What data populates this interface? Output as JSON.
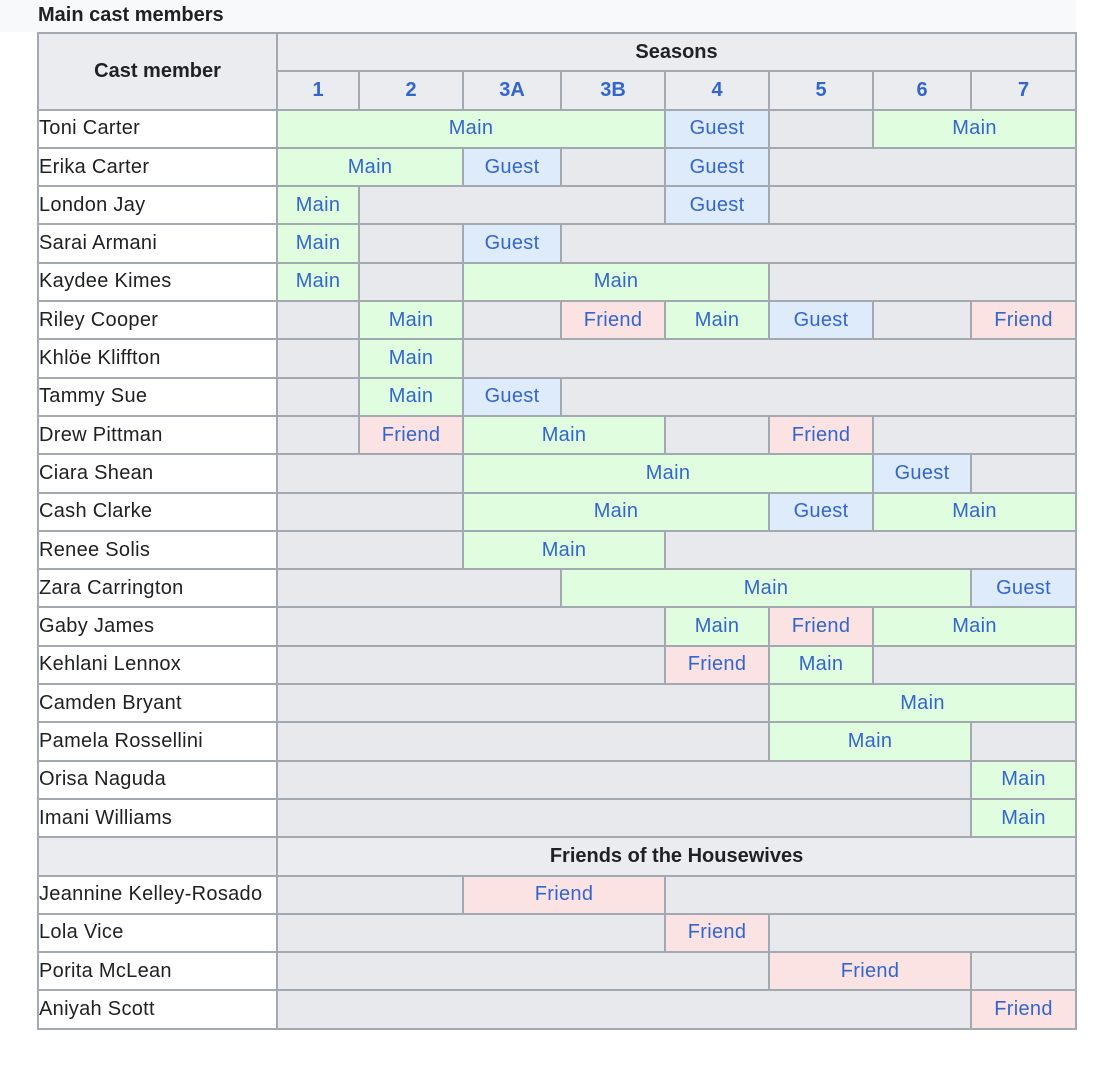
{
  "caption": "Main cast members",
  "header": {
    "cast_member": "Cast member",
    "seasons": "Seasons",
    "season_labels": [
      "1",
      "2",
      "3A",
      "3B",
      "4",
      "5",
      "6",
      "7"
    ]
  },
  "status_colors": {
    "Main": "#e0fde0",
    "Guest": "#deebfa",
    "Friend": "#fbe3e4",
    "none": "#e8e9ec"
  },
  "rows": [
    {
      "name": "Toni Carter",
      "cells": [
        {
          "span": 4,
          "status": "Main"
        },
        {
          "span": 1,
          "status": "Guest"
        },
        {
          "span": 1,
          "status": ""
        },
        {
          "span": 2,
          "status": "Main"
        }
      ]
    },
    {
      "name": "Erika Carter",
      "cells": [
        {
          "span": 2,
          "status": "Main"
        },
        {
          "span": 1,
          "status": "Guest"
        },
        {
          "span": 1,
          "status": ""
        },
        {
          "span": 1,
          "status": "Guest"
        },
        {
          "span": 3,
          "status": ""
        }
      ]
    },
    {
      "name": "London Jay",
      "cells": [
        {
          "span": 1,
          "status": "Main"
        },
        {
          "span": 3,
          "status": ""
        },
        {
          "span": 1,
          "status": "Guest"
        },
        {
          "span": 3,
          "status": ""
        }
      ]
    },
    {
      "name": "Sarai Armani",
      "cells": [
        {
          "span": 1,
          "status": "Main"
        },
        {
          "span": 1,
          "status": ""
        },
        {
          "span": 1,
          "status": "Guest"
        },
        {
          "span": 5,
          "status": ""
        }
      ]
    },
    {
      "name": "Kaydee Kimes",
      "cells": [
        {
          "span": 1,
          "status": "Main"
        },
        {
          "span": 1,
          "status": ""
        },
        {
          "span": 3,
          "status": "Main"
        },
        {
          "span": 3,
          "status": ""
        }
      ]
    },
    {
      "name": "Riley Cooper",
      "cells": [
        {
          "span": 1,
          "status": ""
        },
        {
          "span": 1,
          "status": "Main"
        },
        {
          "span": 1,
          "status": ""
        },
        {
          "span": 1,
          "status": "Friend"
        },
        {
          "span": 1,
          "status": "Main"
        },
        {
          "span": 1,
          "status": "Guest"
        },
        {
          "span": 1,
          "status": ""
        },
        {
          "span": 1,
          "status": "Friend"
        }
      ]
    },
    {
      "name": "Khlöe Kliffton",
      "cells": [
        {
          "span": 1,
          "status": ""
        },
        {
          "span": 1,
          "status": "Main"
        },
        {
          "span": 6,
          "status": ""
        }
      ]
    },
    {
      "name": "Tammy Sue",
      "cells": [
        {
          "span": 1,
          "status": ""
        },
        {
          "span": 1,
          "status": "Main"
        },
        {
          "span": 1,
          "status": "Guest"
        },
        {
          "span": 5,
          "status": ""
        }
      ]
    },
    {
      "name": "Drew Pittman",
      "cells": [
        {
          "span": 1,
          "status": ""
        },
        {
          "span": 1,
          "status": "Friend"
        },
        {
          "span": 2,
          "status": "Main"
        },
        {
          "span": 1,
          "status": ""
        },
        {
          "span": 1,
          "status": "Friend"
        },
        {
          "span": 2,
          "status": ""
        }
      ]
    },
    {
      "name": "Ciara Shean",
      "cells": [
        {
          "span": 2,
          "status": ""
        },
        {
          "span": 4,
          "status": "Main"
        },
        {
          "span": 1,
          "status": "Guest"
        },
        {
          "span": 1,
          "status": ""
        }
      ]
    },
    {
      "name": "Cash Clarke",
      "cells": [
        {
          "span": 2,
          "status": ""
        },
        {
          "span": 3,
          "status": "Main"
        },
        {
          "span": 1,
          "status": "Guest"
        },
        {
          "span": 2,
          "status": "Main"
        }
      ]
    },
    {
      "name": "Renee Solis",
      "cells": [
        {
          "span": 2,
          "status": ""
        },
        {
          "span": 2,
          "status": "Main"
        },
        {
          "span": 4,
          "status": ""
        }
      ]
    },
    {
      "name": "Zara Carrington",
      "cells": [
        {
          "span": 3,
          "status": ""
        },
        {
          "span": 4,
          "status": "Main"
        },
        {
          "span": 1,
          "status": "Guest"
        }
      ]
    },
    {
      "name": "Gaby James",
      "cells": [
        {
          "span": 4,
          "status": ""
        },
        {
          "span": 1,
          "status": "Main"
        },
        {
          "span": 1,
          "status": "Friend"
        },
        {
          "span": 2,
          "status": "Main"
        }
      ]
    },
    {
      "name": "Kehlani Lennox",
      "cells": [
        {
          "span": 4,
          "status": ""
        },
        {
          "span": 1,
          "status": "Friend"
        },
        {
          "span": 1,
          "status": "Main"
        },
        {
          "span": 2,
          "status": ""
        }
      ]
    },
    {
      "name": "Camden Bryant",
      "cells": [
        {
          "span": 5,
          "status": ""
        },
        {
          "span": 3,
          "status": "Main"
        }
      ]
    },
    {
      "name": "Pamela Rossellini",
      "cells": [
        {
          "span": 5,
          "status": ""
        },
        {
          "span": 2,
          "status": "Main"
        },
        {
          "span": 1,
          "status": ""
        }
      ]
    },
    {
      "name": "Orisa Naguda",
      "cells": [
        {
          "span": 7,
          "status": ""
        },
        {
          "span": 1,
          "status": "Main"
        }
      ]
    },
    {
      "name": "Imani Williams",
      "cells": [
        {
          "span": 7,
          "status": ""
        },
        {
          "span": 1,
          "status": "Main"
        }
      ]
    }
  ],
  "friends_header": "Friends of the Housewives",
  "friends": [
    {
      "name": "Jeannine Kelley-Rosado",
      "cells": [
        {
          "span": 2,
          "status": ""
        },
        {
          "span": 2,
          "status": "Friend"
        },
        {
          "span": 4,
          "status": ""
        }
      ]
    },
    {
      "name": "Lola Vice",
      "cells": [
        {
          "span": 4,
          "status": ""
        },
        {
          "span": 1,
          "status": "Friend"
        },
        {
          "span": 3,
          "status": ""
        }
      ]
    },
    {
      "name": "Porita McLean",
      "cells": [
        {
          "span": 5,
          "status": ""
        },
        {
          "span": 2,
          "status": "Friend"
        },
        {
          "span": 1,
          "status": ""
        }
      ]
    },
    {
      "name": "Aniyah Scott",
      "cells": [
        {
          "span": 7,
          "status": ""
        },
        {
          "span": 1,
          "status": "Friend"
        }
      ]
    }
  ]
}
